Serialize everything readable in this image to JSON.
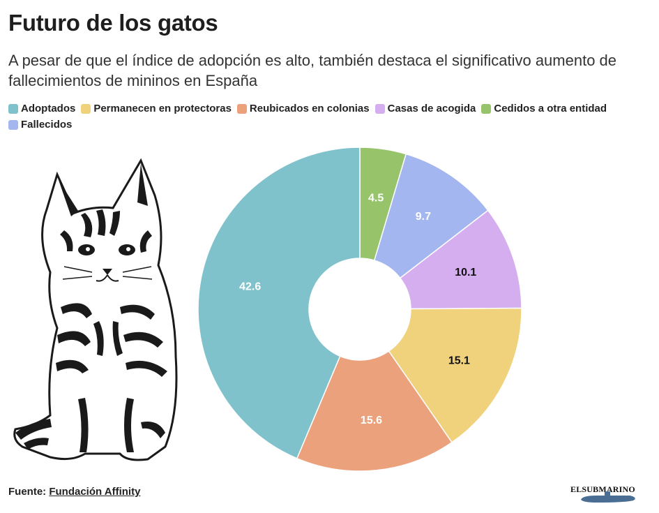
{
  "header": {
    "title": "Futuro de los gatos",
    "subtitle": "A pesar de que el índice de adopción es alto, también destaca el significativo aumento de fallecimientos de mininos en España"
  },
  "legend": [
    {
      "label": "Adoptados",
      "color": "#7fc2cb"
    },
    {
      "label": "Permanecen en protectoras",
      "color": "#f0d17c"
    },
    {
      "label": "Reubicados en colonias",
      "color": "#eba17c"
    },
    {
      "label": "Casas de acogida",
      "color": "#d5aef0"
    },
    {
      "label": "Cedidos a otra entidad",
      "color": "#97c46b"
    },
    {
      "label": "Fallecidos",
      "color": "#a3b6ef"
    }
  ],
  "chart_data": {
    "type": "pie",
    "variant": "donut",
    "slices": [
      {
        "label": "Cedidos a otra entidad",
        "value": 4.5,
        "display": "4.5",
        "color": "#97c46b",
        "label_color": "#ffffff"
      },
      {
        "label": "Fallecidos",
        "value": 9.7,
        "display": "9.7",
        "color": "#a3b6ef",
        "label_color": "#ffffff"
      },
      {
        "label": "Casas de acogida",
        "value": 10.1,
        "display": "10.1",
        "color": "#d5aef0",
        "label_color": "#111111"
      },
      {
        "label": "Permanecen en protectoras",
        "value": 15.1,
        "display": "15.1",
        "color": "#f0d17c",
        "label_color": "#111111"
      },
      {
        "label": "Reubicados en colonias",
        "value": 15.6,
        "display": "15.6",
        "color": "#eba17c",
        "label_color": "#ffffff"
      },
      {
        "label": "Adoptados",
        "value": 42.6,
        "display": "42.6",
        "color": "#7fc2cb",
        "label_color": "#ffffff"
      }
    ],
    "start_angle_deg": 0,
    "direction": "clockwise"
  },
  "footer": {
    "source_prefix": "Fuente:",
    "source_name": "Fundación Affinity",
    "brand": "ELSUBMARINO"
  }
}
